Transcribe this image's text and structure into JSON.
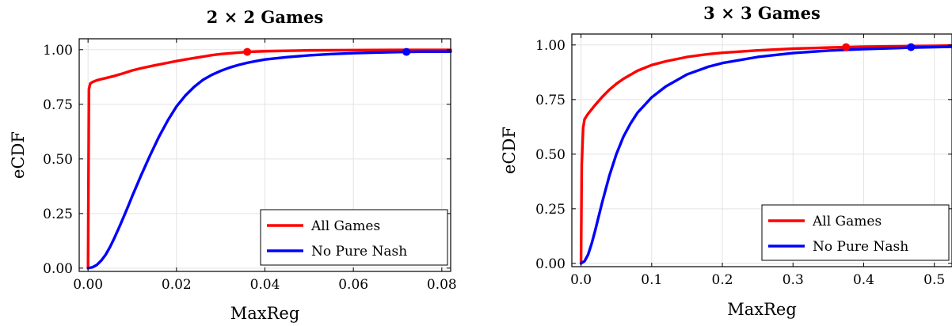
{
  "chart_data": [
    {
      "type": "line",
      "title": "2 × 2 Games",
      "xlabel": "MaxReg",
      "ylabel": "eCDF",
      "xlim": [
        -0.002,
        0.082
      ],
      "ylim": [
        -0.015,
        1.05
      ],
      "xticks": [
        0,
        0.02,
        0.04,
        0.06,
        0.08
      ],
      "xtick_labels": [
        "0.00",
        "0.02",
        "0.04",
        "0.06",
        "0.08"
      ],
      "yticks": [
        0,
        0.25,
        0.5,
        0.75,
        1
      ],
      "ytick_labels": [
        "0.00",
        "0.25",
        "0.50",
        "0.75",
        "1.00"
      ],
      "grid": true,
      "legend_position": "bottom-right",
      "series": [
        {
          "name": "All Games",
          "color": "#ff0000",
          "x": [
            0,
            0.0002,
            0.0005,
            0.001,
            0.002,
            0.004,
            0.006,
            0.008,
            0.01,
            0.012,
            0.015,
            0.018,
            0.02,
            0.022,
            0.025,
            0.028,
            0.03,
            0.033,
            0.036,
            0.04,
            0.045,
            0.05,
            0.06,
            0.07,
            0.082
          ],
          "y": [
            0,
            0.82,
            0.845,
            0.852,
            0.86,
            0.87,
            0.88,
            0.892,
            0.905,
            0.915,
            0.928,
            0.94,
            0.948,
            0.955,
            0.965,
            0.975,
            0.98,
            0.985,
            0.99,
            0.993,
            0.995,
            0.997,
            0.998,
            0.999,
            0.999
          ],
          "marker": {
            "x": 0.036,
            "y": 0.99
          }
        },
        {
          "name": "No Pure Nash",
          "color": "#0000ff",
          "x": [
            0,
            0.001,
            0.002,
            0.003,
            0.004,
            0.005,
            0.006,
            0.007,
            0.008,
            0.009,
            0.01,
            0.012,
            0.014,
            0.016,
            0.018,
            0.02,
            0.022,
            0.024,
            0.026,
            0.028,
            0.03,
            0.032,
            0.034,
            0.036,
            0.038,
            0.04,
            0.045,
            0.05,
            0.055,
            0.06,
            0.065,
            0.07,
            0.072,
            0.076,
            0.082
          ],
          "y": [
            0,
            0.004,
            0.015,
            0.035,
            0.062,
            0.098,
            0.14,
            0.185,
            0.232,
            0.28,
            0.33,
            0.425,
            0.515,
            0.6,
            0.675,
            0.74,
            0.79,
            0.83,
            0.862,
            0.885,
            0.903,
            0.918,
            0.93,
            0.94,
            0.948,
            0.955,
            0.966,
            0.974,
            0.98,
            0.984,
            0.987,
            0.989,
            0.99,
            0.991,
            0.991
          ],
          "marker": {
            "x": 0.072,
            "y": 0.99
          }
        }
      ]
    },
    {
      "type": "line",
      "title": "3 × 3 Games",
      "xlabel": "MaxReg",
      "ylabel": "eCDF",
      "xlim": [
        -0.013,
        0.525
      ],
      "ylim": [
        -0.015,
        1.05
      ],
      "xticks": [
        0,
        0.1,
        0.2,
        0.3,
        0.4,
        0.5
      ],
      "xtick_labels": [
        "0.0",
        "0.1",
        "0.2",
        "0.3",
        "0.4",
        "0.5"
      ],
      "yticks": [
        0,
        0.25,
        0.5,
        0.75,
        1
      ],
      "ytick_labels": [
        "0.00",
        "0.25",
        "0.50",
        "0.75",
        "1.00"
      ],
      "grid": true,
      "legend_position": "bottom-right",
      "series": [
        {
          "name": "All Games",
          "color": "#ff0000",
          "x": [
            0,
            0.001,
            0.003,
            0.005,
            0.01,
            0.02,
            0.03,
            0.04,
            0.05,
            0.06,
            0.08,
            0.1,
            0.12,
            0.15,
            0.18,
            0.2,
            0.25,
            0.3,
            0.35,
            0.375,
            0.4,
            0.45,
            0.5,
            0.525
          ],
          "y": [
            0,
            0.45,
            0.62,
            0.66,
            0.685,
            0.725,
            0.762,
            0.795,
            0.822,
            0.845,
            0.882,
            0.908,
            0.925,
            0.945,
            0.958,
            0.964,
            0.975,
            0.983,
            0.988,
            0.99,
            0.992,
            0.994,
            0.996,
            0.997
          ],
          "marker": {
            "x": 0.375,
            "y": 0.99
          }
        },
        {
          "name": "No Pure Nash",
          "color": "#0000ff",
          "x": [
            0,
            0.005,
            0.01,
            0.015,
            0.02,
            0.03,
            0.04,
            0.05,
            0.06,
            0.07,
            0.08,
            0.1,
            0.12,
            0.15,
            0.18,
            0.2,
            0.25,
            0.3,
            0.35,
            0.4,
            0.45,
            0.467,
            0.5,
            0.525
          ],
          "y": [
            0,
            0.01,
            0.04,
            0.09,
            0.15,
            0.28,
            0.4,
            0.5,
            0.58,
            0.64,
            0.69,
            0.76,
            0.81,
            0.865,
            0.9,
            0.917,
            0.945,
            0.963,
            0.974,
            0.981,
            0.986,
            0.988,
            0.99,
            0.992
          ],
          "marker": {
            "x": 0.467,
            "y": 0.99
          }
        }
      ]
    }
  ]
}
